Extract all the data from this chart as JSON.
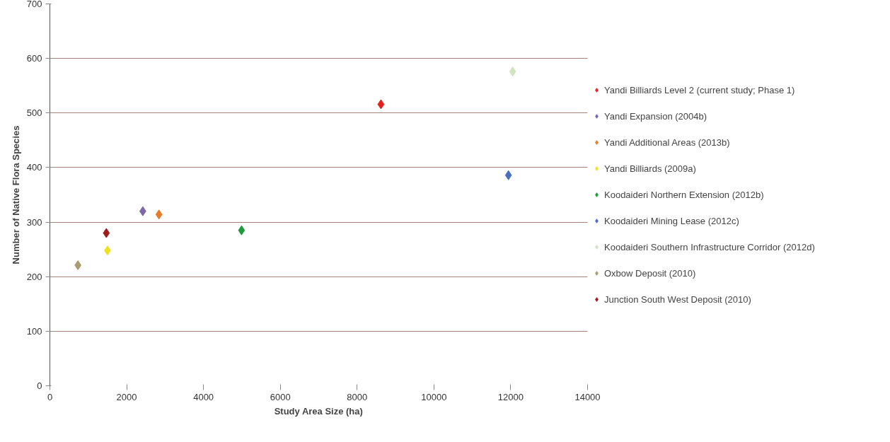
{
  "chart_data": {
    "type": "scatter",
    "xlabel": "Study Area Size (ha)",
    "ylabel": "Number of Native Flora Species",
    "xlim": [
      0,
      14000
    ],
    "xticks": [
      0,
      2000,
      4000,
      6000,
      8000,
      10000,
      12000,
      14000
    ],
    "ylim": [
      0,
      700
    ],
    "yticks": [
      0,
      100,
      200,
      300,
      400,
      500,
      600,
      700
    ],
    "grid": "y",
    "legend": "right",
    "marker": "diamond",
    "series": [
      {
        "name": "Yandi Billiards Level 2 (current study; Phase 1)",
        "color": "#e8201d",
        "x": [
          8620
        ],
        "values": [
          516
        ]
      },
      {
        "name": "Yandi Expansion (2004b)",
        "color": "#7b68a8",
        "x": [
          2420
        ],
        "values": [
          320
        ]
      },
      {
        "name": "Yandi Additional Areas (2013b)",
        "color": "#e87b2a",
        "x": [
          2840
        ],
        "values": [
          314
        ]
      },
      {
        "name": "Yandi Billiards (2009a)",
        "color": "#f0e020",
        "x": [
          1500
        ],
        "values": [
          248
        ]
      },
      {
        "name": "Koodaideri Northern Extension (2012b)",
        "color": "#1f9a3c",
        "x": [
          4990
        ],
        "values": [
          285
        ]
      },
      {
        "name": "Koodaideri Mining Lease (2012c)",
        "color": "#4a6fbf",
        "x": [
          11940
        ],
        "values": [
          386
        ]
      },
      {
        "name": "Koodaideri Southern Infrastructure Corridor (2012d)",
        "color": "#d0e4c0",
        "x": [
          12050
        ],
        "values": [
          576
        ]
      },
      {
        "name": "Oxbow Deposit (2010)",
        "color": "#a89c70",
        "x": [
          730
        ],
        "values": [
          221
        ]
      },
      {
        "name": "Junction South West Deposit (2010)",
        "color": "#a01c1c",
        "x": [
          1470
        ],
        "values": [
          280
        ]
      }
    ]
  }
}
